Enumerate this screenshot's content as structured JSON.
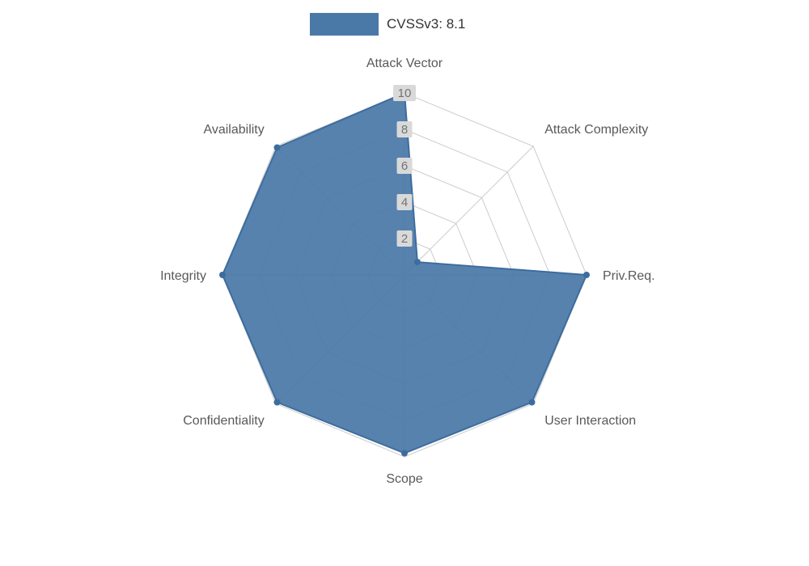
{
  "chart_data": {
    "type": "radar",
    "legend_label": "CVSSv3: 8.1",
    "legend_position": "top",
    "categories": [
      "Attack Vector",
      "Attack Complexity",
      "Priv.Req.",
      "User Interaction",
      "Scope",
      "Confidentiality",
      "Integrity",
      "Availability"
    ],
    "series": [
      {
        "name": "CVSSv3: 8.1",
        "values": [
          10,
          1,
          10,
          9.9,
          9.8,
          9.9,
          10,
          9.9
        ]
      }
    ],
    "ticks": [
      2,
      4,
      6,
      8,
      10
    ],
    "max": 10,
    "grid": true,
    "colors": {
      "fill": "#4a79a8",
      "line": "#3d6d9e",
      "grid": "#cccccc",
      "axis_label": "#595959",
      "tick_text": "#737373",
      "tick_bg": "#d9d9d9",
      "legend_text": "#333333"
    }
  }
}
